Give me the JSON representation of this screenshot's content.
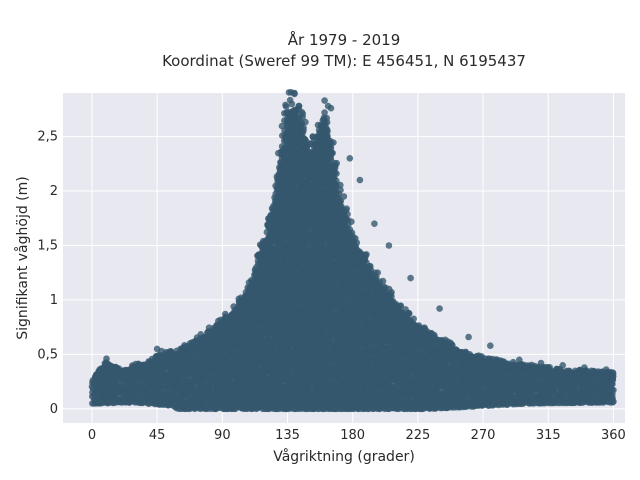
{
  "chart_data": {
    "type": "scatter",
    "title_lines": [
      "År 1979 - 2019",
      "Koordinat (Sweref 99 TM): E 456451, N 6195437"
    ],
    "xlabel": "Vågriktning (grader)",
    "ylabel": "Signifikant våghöjd (m)",
    "xlim": [
      -20,
      368
    ],
    "ylim": [
      -0.13,
      2.9
    ],
    "x_ticks": [
      {
        "value": 0,
        "label": "0"
      },
      {
        "value": 45,
        "label": "45"
      },
      {
        "value": 90,
        "label": "90"
      },
      {
        "value": 135,
        "label": "135"
      },
      {
        "value": 180,
        "label": "180"
      },
      {
        "value": 225,
        "label": "225"
      },
      {
        "value": 270,
        "label": "270"
      },
      {
        "value": 315,
        "label": "315"
      },
      {
        "value": 360,
        "label": "360"
      }
    ],
    "y_ticks": [
      {
        "value": 0,
        "label": "0"
      },
      {
        "value": 0.5,
        "label": "0,5"
      },
      {
        "value": 1,
        "label": "1"
      },
      {
        "value": 1.5,
        "label": "1,5"
      },
      {
        "value": 2,
        "label": "2"
      },
      {
        "value": 2.5,
        "label": "2,5"
      }
    ],
    "grid": true,
    "marker_color": "#34576e",
    "plot_background": "#e8e8f0",
    "grid_color": "#ffffff",
    "envelope": {
      "description": "approximate upper and lower bounds of the dense point cloud (direction in degrees, height in m)",
      "upper": [
        [
          0,
          0.24
        ],
        [
          10,
          0.42
        ],
        [
          20,
          0.33
        ],
        [
          30,
          0.38
        ],
        [
          40,
          0.42
        ],
        [
          50,
          0.48
        ],
        [
          60,
          0.5
        ],
        [
          70,
          0.6
        ],
        [
          80,
          0.68
        ],
        [
          90,
          0.78
        ],
        [
          100,
          0.9
        ],
        [
          110,
          1.15
        ],
        [
          115,
          1.35
        ],
        [
          120,
          1.55
        ],
        [
          125,
          1.85
        ],
        [
          130,
          2.3
        ],
        [
          135,
          2.7
        ],
        [
          140,
          2.75
        ],
        [
          145,
          2.55
        ],
        [
          150,
          2.3
        ],
        [
          155,
          2.45
        ],
        [
          160,
          2.7
        ],
        [
          165,
          2.4
        ],
        [
          170,
          2.0
        ],
        [
          175,
          1.75
        ],
        [
          180,
          1.55
        ],
        [
          190,
          1.3
        ],
        [
          200,
          1.1
        ],
        [
          210,
          0.95
        ],
        [
          220,
          0.8
        ],
        [
          230,
          0.7
        ],
        [
          240,
          0.62
        ],
        [
          250,
          0.55
        ],
        [
          260,
          0.48
        ],
        [
          270,
          0.44
        ],
        [
          280,
          0.42
        ],
        [
          290,
          0.4
        ],
        [
          300,
          0.38
        ],
        [
          315,
          0.35
        ],
        [
          330,
          0.33
        ],
        [
          345,
          0.32
        ],
        [
          360,
          0.3
        ]
      ],
      "lower": [
        [
          0,
          0.05
        ],
        [
          30,
          0.06
        ],
        [
          55,
          0.03
        ],
        [
          60,
          0.0
        ],
        [
          100,
          0.0
        ],
        [
          180,
          0.0
        ],
        [
          230,
          0.0
        ],
        [
          260,
          0.02
        ],
        [
          300,
          0.05
        ],
        [
          360,
          0.06
        ]
      ]
    },
    "outliers": [
      [
        10,
        0.46
      ],
      [
        45,
        0.55
      ],
      [
        48,
        0.53
      ],
      [
        62,
        0.53
      ],
      [
        72,
        0.58
      ],
      [
        138,
        2.8
      ],
      [
        143,
        2.78
      ],
      [
        163,
        2.78
      ],
      [
        165,
        2.76
      ],
      [
        178,
        2.3
      ],
      [
        185,
        2.1
      ],
      [
        195,
        1.7
      ],
      [
        205,
        1.5
      ],
      [
        220,
        1.2
      ],
      [
        240,
        0.92
      ],
      [
        260,
        0.66
      ],
      [
        275,
        0.58
      ],
      [
        295,
        0.45
      ],
      [
        310,
        0.42
      ],
      [
        325,
        0.4
      ],
      [
        340,
        0.38
      ],
      [
        355,
        0.36
      ]
    ]
  }
}
